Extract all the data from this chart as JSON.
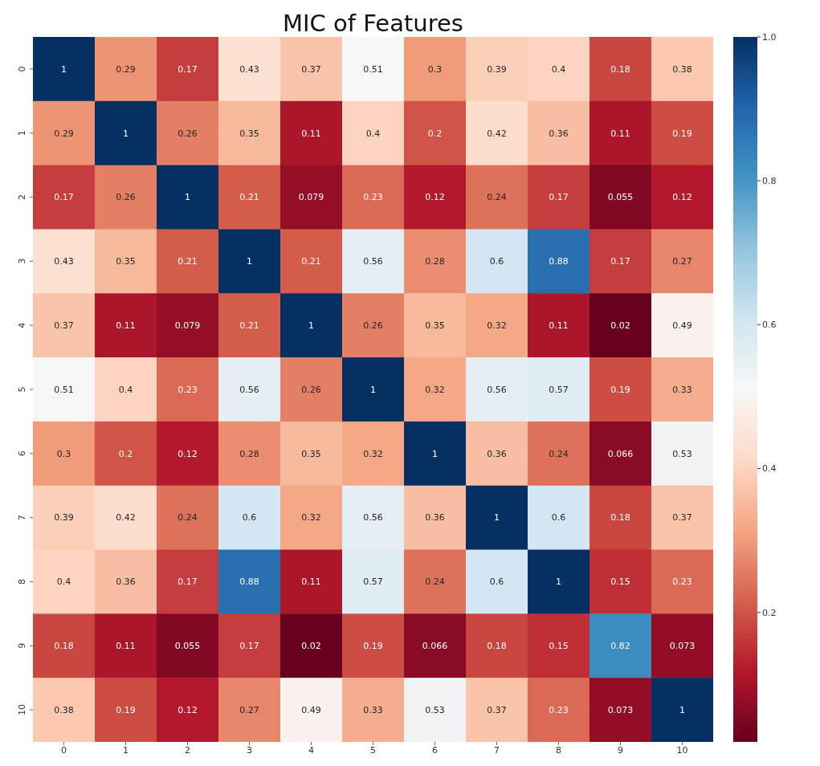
{
  "chart_data": {
    "type": "heatmap",
    "title": "MIC of Features",
    "categories": [
      "0",
      "1",
      "2",
      "3",
      "4",
      "5",
      "6",
      "7",
      "8",
      "9",
      "10"
    ],
    "y_categories": [
      "0",
      "1",
      "2",
      "3",
      "4",
      "5",
      "6",
      "7",
      "8",
      "9",
      "10"
    ],
    "cells": [
      [
        1,
        0.29,
        0.17,
        0.43,
        0.37,
        0.51,
        0.3,
        0.39,
        0.4,
        0.18,
        0.38
      ],
      [
        0.29,
        1,
        0.26,
        0.35,
        0.11,
        0.4,
        0.2,
        0.42,
        0.36,
        0.11,
        0.19
      ],
      [
        0.17,
        0.26,
        1,
        0.21,
        0.079,
        0.23,
        0.12,
        0.24,
        0.17,
        0.055,
        0.12
      ],
      [
        0.43,
        0.35,
        0.21,
        1,
        0.21,
        0.56,
        0.28,
        0.6,
        0.88,
        0.17,
        0.27
      ],
      [
        0.37,
        0.11,
        0.079,
        0.21,
        1,
        0.26,
        0.35,
        0.32,
        0.11,
        0.02,
        0.49
      ],
      [
        0.51,
        0.4,
        0.23,
        0.56,
        0.26,
        1,
        0.32,
        0.56,
        0.57,
        0.19,
        0.33
      ],
      [
        0.3,
        0.2,
        0.12,
        0.28,
        0.35,
        0.32,
        1,
        0.36,
        0.24,
        0.066,
        0.53
      ],
      [
        0.39,
        0.42,
        0.24,
        0.6,
        0.32,
        0.56,
        0.36,
        1,
        0.6,
        0.18,
        0.37
      ],
      [
        0.4,
        0.36,
        0.17,
        0.88,
        0.11,
        0.57,
        0.24,
        0.6,
        1,
        0.15,
        0.23
      ],
      [
        0.18,
        0.11,
        0.055,
        0.17,
        0.02,
        0.19,
        0.066,
        0.18,
        0.15,
        0.82,
        0.073
      ],
      [
        0.38,
        0.19,
        0.12,
        0.27,
        0.49,
        0.33,
        0.53,
        0.37,
        0.23,
        0.073,
        1
      ]
    ],
    "data_labels": true,
    "clim": [
      0.02,
      1
    ],
    "cticks": [
      0.2,
      0.4,
      0.6,
      0.8,
      {
        "value": 1,
        "label": "1.0"
      }
    ]
  }
}
